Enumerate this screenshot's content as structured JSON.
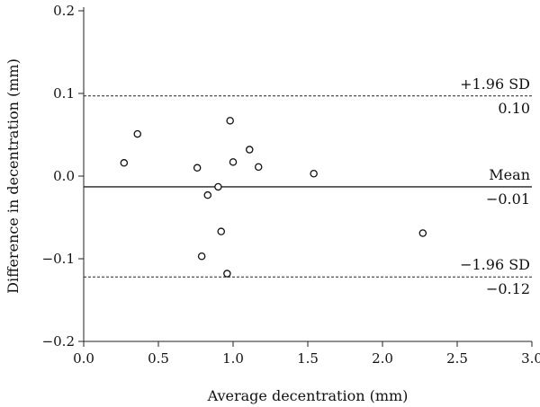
{
  "chart_data": {
    "type": "scatter",
    "xlabel": "Average decentration (mm)",
    "ylabel": "Difference in decentration (mm)",
    "xlim": [
      0.0,
      3.0
    ],
    "ylim": [
      -0.2,
      0.2
    ],
    "x_ticks": [
      0.0,
      0.5,
      1.0,
      1.5,
      2.0,
      2.5,
      3.0
    ],
    "x_tick_labels": [
      "0.0",
      "0.5",
      "1.0",
      "1.5",
      "2.0",
      "2.5",
      "3.0"
    ],
    "y_ticks": [
      0.2,
      0.1,
      0.0,
      -0.1,
      -0.2
    ],
    "y_tick_labels": [
      "0.2",
      "0.1",
      "0.0",
      "−0.1",
      "−0.2"
    ],
    "grid": false,
    "points": [
      {
        "x": 0.27,
        "y": 0.016
      },
      {
        "x": 0.36,
        "y": 0.051
      },
      {
        "x": 0.76,
        "y": 0.01
      },
      {
        "x": 0.79,
        "y": -0.097
      },
      {
        "x": 0.83,
        "y": -0.023
      },
      {
        "x": 0.9,
        "y": -0.013
      },
      {
        "x": 0.92,
        "y": -0.067
      },
      {
        "x": 0.96,
        "y": -0.118
      },
      {
        "x": 0.98,
        "y": 0.067
      },
      {
        "x": 1.0,
        "y": 0.017
      },
      {
        "x": 1.11,
        "y": 0.032
      },
      {
        "x": 1.17,
        "y": 0.011
      },
      {
        "x": 1.54,
        "y": 0.003
      },
      {
        "x": 2.27,
        "y": -0.069
      }
    ],
    "reference_lines": [
      {
        "name": "+1.96 SD",
        "value": 0.097,
        "value_label": "0.10",
        "style": "dashed"
      },
      {
        "name": "Mean",
        "value": -0.013,
        "value_label": "−0.01",
        "style": "solid"
      },
      {
        "name": "−1.96 SD",
        "value": -0.122,
        "value_label": "−0.12",
        "style": "dashed"
      }
    ]
  }
}
